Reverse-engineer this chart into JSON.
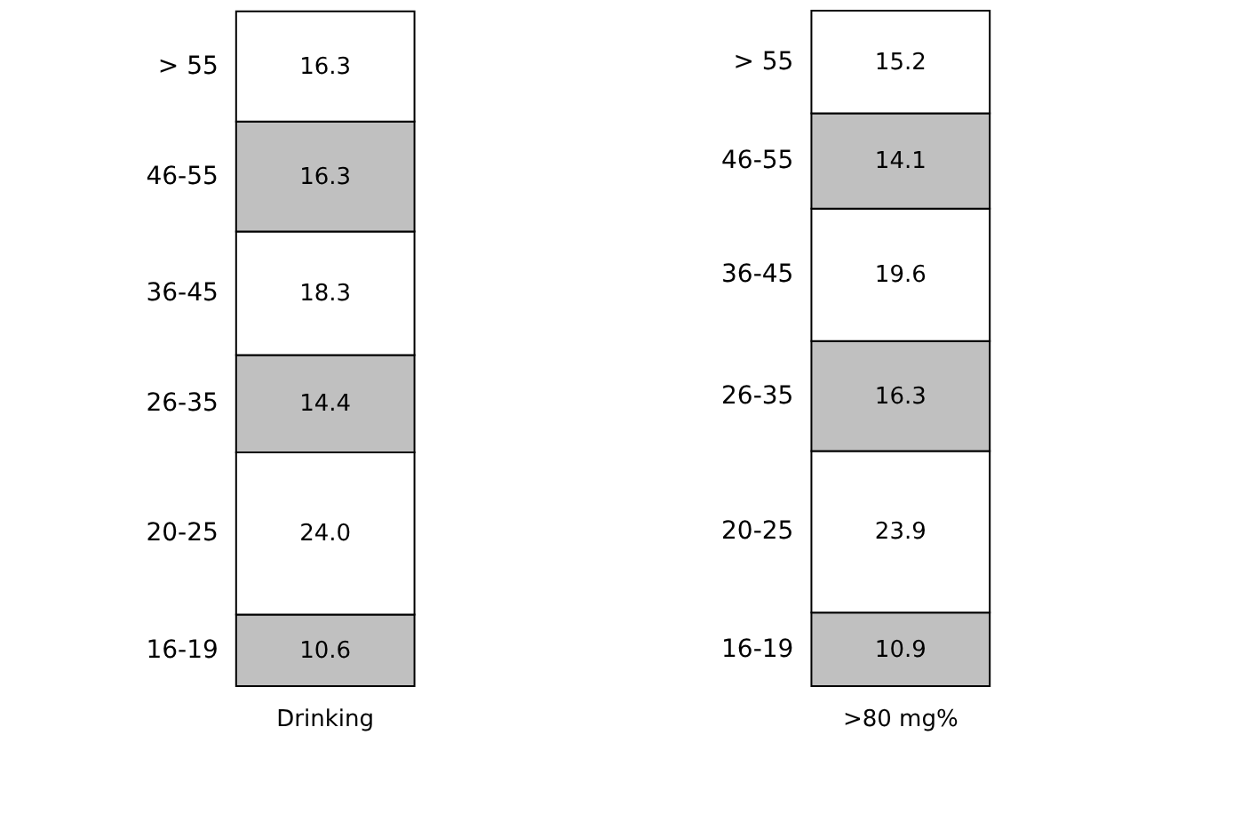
{
  "chart_data": {
    "type": "bar",
    "stacked": true,
    "categories": [
      "Drinking",
      ">80 mg%"
    ],
    "series": [
      {
        "name": "16-19",
        "color": "#c0c0c0",
        "values": [
          10.6,
          10.9
        ],
        "value_labels": [
          "10.6",
          "10.9"
        ]
      },
      {
        "name": "20-25",
        "color": "#ffffff",
        "values": [
          24.0,
          23.9
        ],
        "value_labels": [
          "24.0",
          "23.9"
        ]
      },
      {
        "name": "26-35",
        "color": "#c0c0c0",
        "values": [
          14.4,
          16.3
        ],
        "value_labels": [
          "14.4",
          "16.3"
        ]
      },
      {
        "name": "36-45",
        "color": "#ffffff",
        "values": [
          18.3,
          19.6
        ],
        "value_labels": [
          "18.3",
          "19.6"
        ]
      },
      {
        "name": "46-55",
        "color": "#c0c0c0",
        "values": [
          16.3,
          14.1
        ],
        "value_labels": [
          "16.3",
          "14.1"
        ]
      },
      {
        "name": "> 55",
        "color": "#ffffff",
        "values": [
          16.3,
          15.2
        ],
        "value_labels": [
          "16.3",
          "15.2"
        ]
      }
    ]
  }
}
